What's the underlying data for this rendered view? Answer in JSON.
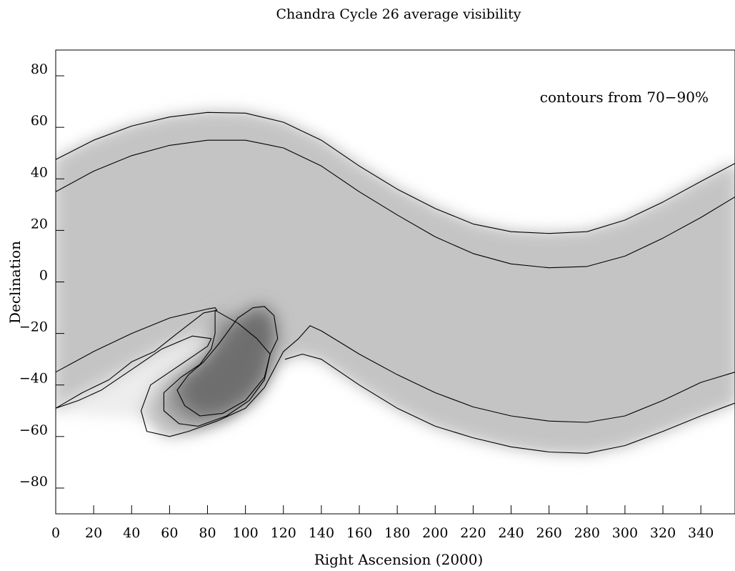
{
  "chart_data": {
    "type": "heatmap",
    "title": "Chandra Cycle 26 average visibility",
    "xlabel": "Right Ascension (2000)",
    "ylabel": "Declination",
    "annotation": "contours from 70−90%",
    "xlim": [
      0,
      358
    ],
    "ylim": [
      -90,
      90
    ],
    "xticks": [
      0,
      20,
      40,
      60,
      80,
      100,
      120,
      140,
      160,
      180,
      200,
      220,
      240,
      260,
      280,
      300,
      320,
      340
    ],
    "yticks": [
      80,
      60,
      40,
      20,
      0,
      -20,
      -40,
      -60,
      -80
    ],
    "ytick_labels": [
      "80",
      "60",
      "40",
      "20",
      "0",
      "−20",
      "−40",
      "−60",
      "−80"
    ],
    "colormap": "white (low) to gray (high)",
    "contour_levels_pct": [
      70,
      80,
      90
    ],
    "contours": [
      {
        "name": "band-upper-outer",
        "points": [
          [
            0,
            47.5
          ],
          [
            20,
            55
          ],
          [
            40,
            60.5
          ],
          [
            60,
            64
          ],
          [
            80,
            65.8
          ],
          [
            100,
            65.5
          ],
          [
            120,
            62
          ],
          [
            140,
            55
          ],
          [
            160,
            45
          ],
          [
            180,
            36
          ],
          [
            200,
            28.5
          ],
          [
            220,
            22.5
          ],
          [
            240,
            19.5
          ],
          [
            260,
            18.8
          ],
          [
            280,
            19.5
          ],
          [
            300,
            24
          ],
          [
            320,
            31
          ],
          [
            340,
            39
          ],
          [
            358,
            46
          ]
        ]
      },
      {
        "name": "band-upper-inner",
        "points": [
          [
            0,
            35
          ],
          [
            20,
            43
          ],
          [
            40,
            49
          ],
          [
            60,
            53
          ],
          [
            80,
            55
          ],
          [
            100,
            55
          ],
          [
            120,
            52
          ],
          [
            140,
            45
          ],
          [
            160,
            35
          ],
          [
            180,
            26
          ],
          [
            200,
            17.5
          ],
          [
            220,
            11
          ],
          [
            240,
            7
          ],
          [
            260,
            5.5
          ],
          [
            280,
            6
          ],
          [
            300,
            10
          ],
          [
            320,
            17
          ],
          [
            340,
            25
          ],
          [
            358,
            33
          ]
        ]
      },
      {
        "name": "band-lower-inner",
        "points": [
          [
            0,
            -35
          ],
          [
            20,
            -27
          ],
          [
            40,
            -20
          ],
          [
            60,
            -14
          ],
          [
            80,
            -10.5
          ],
          [
            84,
            -10
          ],
          [
            85,
            -11
          ],
          [
            78,
            -12
          ],
          [
            64,
            -20
          ],
          [
            52,
            -27
          ],
          [
            40,
            -31
          ],
          [
            28,
            -38
          ],
          [
            14,
            -43
          ],
          [
            0,
            -49
          ]
        ]
      },
      {
        "name": "band-lower-inner-right",
        "points": [
          [
            120,
            -27
          ],
          [
            128,
            -22
          ],
          [
            134,
            -17
          ],
          [
            140,
            -19
          ],
          [
            160,
            -28
          ],
          [
            180,
            -36
          ],
          [
            200,
            -43
          ],
          [
            220,
            -48.5
          ],
          [
            240,
            -52
          ],
          [
            260,
            -54
          ],
          [
            280,
            -54.5
          ],
          [
            300,
            -52
          ],
          [
            320,
            -46
          ],
          [
            340,
            -39
          ],
          [
            358,
            -35
          ]
        ]
      },
      {
        "name": "band-lower-outer-right",
        "points": [
          [
            121,
            -30
          ],
          [
            130,
            -28
          ],
          [
            140,
            -30
          ],
          [
            160,
            -40
          ],
          [
            180,
            -49
          ],
          [
            200,
            -56
          ],
          [
            220,
            -60.5
          ],
          [
            240,
            -64
          ],
          [
            260,
            -66
          ],
          [
            280,
            -66.5
          ],
          [
            300,
            -63.5
          ],
          [
            320,
            -58
          ],
          [
            340,
            -52
          ],
          [
            358,
            -47
          ]
        ]
      },
      {
        "name": "south-outer-loop",
        "points": [
          [
            120,
            -27
          ],
          [
            110,
            -41
          ],
          [
            100,
            -49
          ],
          [
            85,
            -54
          ],
          [
            70,
            -58
          ],
          [
            60,
            -60
          ],
          [
            48,
            -58
          ],
          [
            45,
            -50
          ],
          [
            50,
            -40
          ],
          [
            62,
            -34
          ],
          [
            72,
            -29
          ],
          [
            80,
            -25
          ],
          [
            82,
            -22
          ],
          [
            72,
            -21
          ],
          [
            56,
            -26
          ],
          [
            44,
            -32
          ],
          [
            34,
            -37
          ],
          [
            24,
            -42
          ],
          [
            12,
            -46
          ],
          [
            0,
            -49
          ]
        ]
      },
      {
        "name": "south-middle-loop",
        "points": [
          [
            84,
            -11
          ],
          [
            96,
            -16
          ],
          [
            106,
            -22
          ],
          [
            113,
            -28
          ],
          [
            110,
            -38
          ],
          [
            102,
            -46
          ],
          [
            90,
            -52
          ],
          [
            75,
            -56
          ],
          [
            65,
            -55
          ],
          [
            57,
            -50
          ],
          [
            57,
            -43
          ],
          [
            66,
            -37
          ],
          [
            76,
            -32
          ],
          [
            82,
            -26
          ],
          [
            84,
            -20
          ],
          [
            84,
            -11
          ]
        ]
      },
      {
        "name": "south-inner-loop",
        "points": [
          [
            96,
            -14
          ],
          [
            104,
            -10
          ],
          [
            110,
            -9.5
          ],
          [
            115,
            -13
          ],
          [
            117,
            -22
          ],
          [
            113,
            -28
          ],
          [
            110,
            -37
          ],
          [
            100,
            -46
          ],
          [
            88,
            -51
          ],
          [
            76,
            -52
          ],
          [
            68,
            -48
          ],
          [
            64,
            -42
          ],
          [
            70,
            -36
          ],
          [
            78,
            -31
          ],
          [
            86,
            -24
          ],
          [
            92,
            -18
          ],
          [
            96,
            -14
          ]
        ]
      }
    ]
  }
}
